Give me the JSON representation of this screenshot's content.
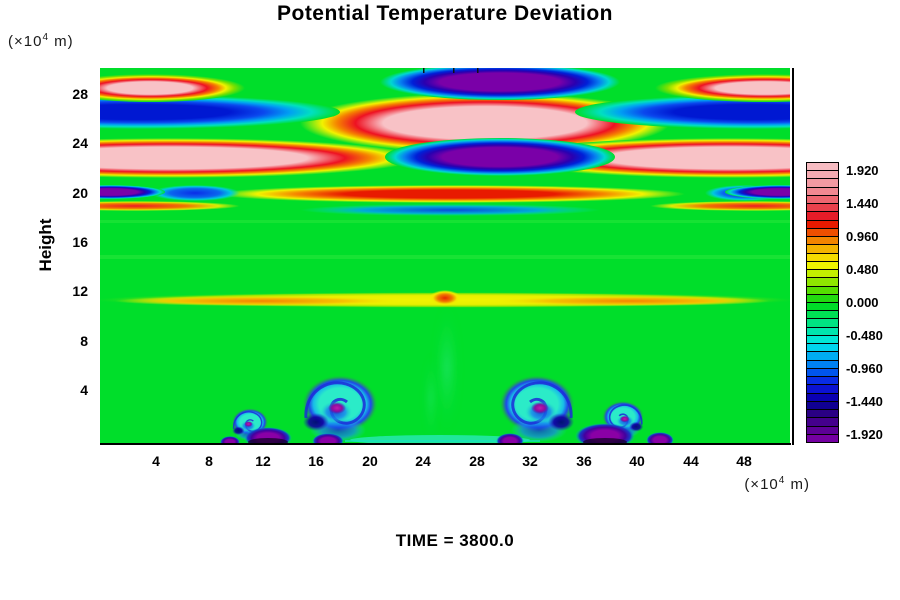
{
  "title": "Potential Temperature Deviation",
  "footer": {
    "time_label": "TIME = 3800.0"
  },
  "axes": {
    "y": {
      "label": "Height",
      "unit": {
        "prefix": "(×10",
        "sup": "4",
        "suffix": " m)"
      },
      "ticks": [
        "28",
        "24",
        "20",
        "16",
        "12",
        "8",
        "4"
      ]
    },
    "x": {
      "unit": {
        "prefix": "(×10",
        "sup": "4",
        "suffix": " m)"
      },
      "ticks": [
        "4",
        "8",
        "12",
        "16",
        "20",
        "24",
        "28",
        "32",
        "36",
        "40",
        "44",
        "48"
      ]
    }
  },
  "colorbar": {
    "labels": [
      "1.920",
      "1.440",
      "0.960",
      "0.480",
      "0.000",
      "-0.480",
      "-0.960",
      "-1.440",
      "-1.920"
    ],
    "segments": 34,
    "value_min": -2.04,
    "value_max": 2.04,
    "step": 0.12,
    "colors_top_to_bottom": [
      "#F7BCC2",
      "#F5ABB2",
      "#F39AA2",
      "#F18891",
      "#EE6670",
      "#EA414C",
      "#E61C28",
      "#E81A00",
      "#EE4F00",
      "#F28500",
      "#F4B400",
      "#F5DC00",
      "#EFF400",
      "#C3EE00",
      "#8FE600",
      "#55DE00",
      "#22DA10",
      "#00DC28",
      "#00E054",
      "#00E382",
      "#00E6AE",
      "#00E8D6",
      "#00D5EE",
      "#00ACF2",
      "#0081F2",
      "#0055EE",
      "#082CE6",
      "#0B12D2",
      "#0A00B2",
      "#100092",
      "#2A0084",
      "#44008C",
      "#5C0096",
      "#7400A2"
    ]
  },
  "chart_data": {
    "type": "heatmap",
    "title": "Potential Temperature Deviation",
    "xlabel": "(×10⁴ m)",
    "ylabel": "Height (×10⁴ m)",
    "x_range": [
      0,
      51.5
    ],
    "y_range": [
      0,
      30.6
    ],
    "x_ticks": [
      4,
      8,
      12,
      16,
      20,
      24,
      28,
      32,
      36,
      40,
      44,
      48
    ],
    "y_ticks": [
      28,
      24,
      20,
      16,
      12,
      8,
      4
    ],
    "time": 3800.0,
    "value_levels": {
      "min": -2.04,
      "max": 2.04,
      "step": 0.12,
      "n_bands": 34
    },
    "legend_position": "right",
    "grid": false,
    "background_value": 0.0,
    "features": [
      {
        "name": "upper-warm-cells",
        "y_about": 28.5,
        "x_about": [
          4,
          49
        ],
        "value": ">= +1.92",
        "desc": "warm pink/red elliptical cells at upper-left and upper-right corners"
      },
      {
        "name": "upper-cold-cell",
        "y_about": 29.0,
        "x_about": [
          28.9
        ],
        "value": "<= -1.92",
        "desc": "cold purple ellipse ringed in blue at top center"
      },
      {
        "name": "cold-blue-bands",
        "y_about": 25.4,
        "x_about": [
          8,
          45
        ],
        "value": "~ -1.4",
        "desc": "cold dark-blue bands either side of center"
      },
      {
        "name": "central-warm-core",
        "y_about": 23.7,
        "x_about": [
          28.5
        ],
        "value": ">= +1.92",
        "desc": "large warm pink ellipse ringed red/orange/yellow at center"
      },
      {
        "name": "warm-pink-bands",
        "y_about": 22.0,
        "x_about": [
          9,
          45
        ],
        "value": ">= +1.92",
        "desc": "warm pink horizontal bands on both sides"
      },
      {
        "name": "central-cold-core",
        "y_about": 22.2,
        "x_about": [
          28.9
        ],
        "value": "<= -1.92",
        "desc": "cold purple ellipse at center below warm core"
      },
      {
        "name": "thin-warm-band",
        "y_about": 20.3,
        "x_about": [
          26
        ],
        "value": "~ +1.7",
        "desc": "thin red band across middle, purple patches at side walls"
      },
      {
        "name": "quiescent-interior",
        "y_about": [
          13,
          19
        ],
        "x_about": [
          0,
          51.5
        ],
        "value": "~ 0.0",
        "desc": "uniform green region"
      },
      {
        "name": "warm-shear-line",
        "y_about": 11.7,
        "x_about": [
          0,
          51.5
        ],
        "value": "+0.5 to +1.0",
        "desc": "yellow band with orange patches; small warm plume peak at x≈25.7"
      },
      {
        "name": "kh-vortices",
        "y_about": 2.8,
        "x_about": [
          17.7,
          32.4
        ],
        "value": "-0.9 to -2.0",
        "desc": "two mushroom-shaped cold vortices, cyan caps, blue spirals, magenta cores"
      },
      {
        "name": "side-rolls",
        "y_about": 1.4,
        "x_about": [
          11.3,
          38.8
        ],
        "value": "~ -1.5",
        "desc": "smaller cold rolls near bottom boundary"
      },
      {
        "name": "bottom-cold-pools",
        "y_about": 0.3,
        "x_about": [
          12,
          40
        ],
        "value": "<= -1.92",
        "desc": "purple pools along lower boundary beneath vortices"
      }
    ]
  }
}
